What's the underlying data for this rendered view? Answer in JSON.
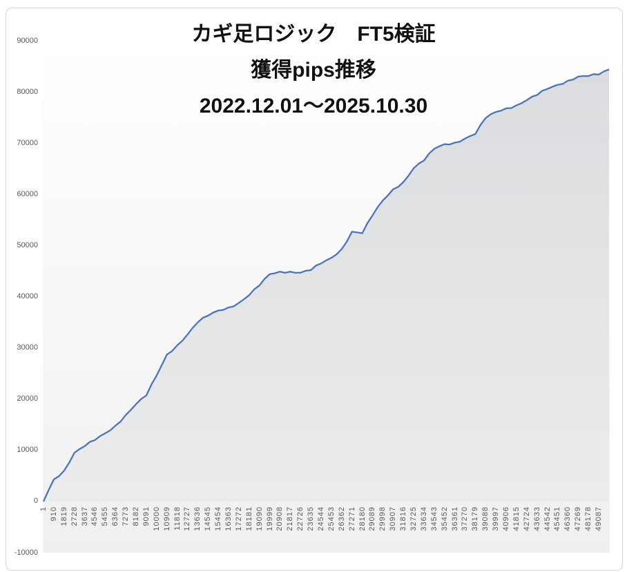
{
  "chart": {
    "colors": {
      "line": "#4a74bb",
      "fill_top": "#dadcdf",
      "fill_bottom": "#ececec",
      "plot_bg_top": "#ffffff",
      "plot_bg_bottom": "#efefef",
      "tick_text": "#595959",
      "title_text": "#111111",
      "frame_border": "#d7d7d7"
    }
  },
  "chart_data": {
    "type": "area",
    "title_lines": [
      "カギ足ロジック　FT5検証",
      "獲得pips推移",
      "2022.12.01～2025.10.30"
    ],
    "legend": false,
    "grid": false,
    "ylim": [
      -10000,
      90000
    ],
    "ytick_step": 10000,
    "y_ticks": [
      90000,
      80000,
      70000,
      60000,
      50000,
      40000,
      30000,
      20000,
      10000,
      0,
      -10000
    ],
    "x_tick_labels": [
      "1",
      "910",
      "1819",
      "2728",
      "3637",
      "4546",
      "5455",
      "6364",
      "7273",
      "8182",
      "9091",
      "10000",
      "10909",
      "11818",
      "12727",
      "13636",
      "14545",
      "15454",
      "16363",
      "17272",
      "18181",
      "19090",
      "19999",
      "20908",
      "21817",
      "22726",
      "23635",
      "24544",
      "25453",
      "26362",
      "27271",
      "28180",
      "29089",
      "29998",
      "30907",
      "31816",
      "32725",
      "33634",
      "34543",
      "35452",
      "36361",
      "37270",
      "38179",
      "39088",
      "39997",
      "40906",
      "41815",
      "42724",
      "43633",
      "44542",
      "45451",
      "46360",
      "47269",
      "48178",
      "49087"
    ],
    "values": [
      0,
      4300,
      6000,
      9500,
      10800,
      12000,
      13300,
      14800,
      16900,
      19000,
      20700,
      24600,
      28700,
      30500,
      32600,
      35000,
      36300,
      37300,
      37900,
      38800,
      40300,
      42200,
      44400,
      44900,
      44900,
      44700,
      45200,
      46500,
      47600,
      49300,
      52700,
      52400,
      55900,
      58800,
      61000,
      62400,
      65100,
      66600,
      68900,
      69800,
      70100,
      70900,
      71800,
      74900,
      76100,
      76800,
      77400,
      78400,
      79400,
      80600,
      81400,
      82200,
      83000,
      83100,
      83400,
      84400
    ]
  }
}
